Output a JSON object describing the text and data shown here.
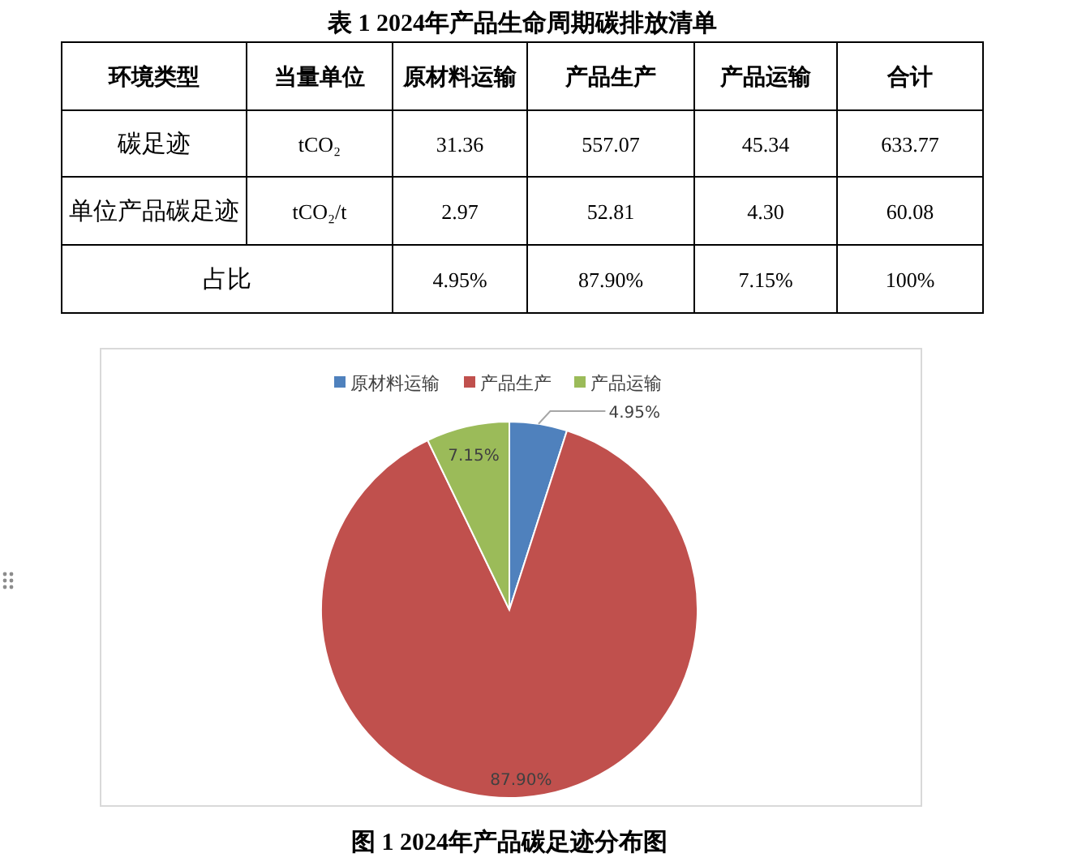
{
  "chart_data": [
    {
      "type": "other",
      "title": "表 1 2024年产品生命周期碳排放清单",
      "annotations": [
        "环境类型",
        "当量单位",
        "原材料运输",
        "产品生产",
        "产品运输",
        "合计",
        "碳足迹",
        "tCO₂",
        "31.36",
        "557.07",
        "45.34",
        "633.77",
        "单位产品碳足迹",
        "tCO₂/t",
        "2.97",
        "52.81",
        "4.30",
        "60.08",
        "占比",
        "4.95%",
        "87.90%",
        "7.15%",
        "100%"
      ]
    },
    {
      "type": "pie",
      "title": "图 1 2024年产品碳足迹分布图",
      "categories": [
        "原材料运输",
        "产品生产",
        "产品运输"
      ],
      "values": [
        4.95,
        87.9,
        7.15
      ],
      "colors": [
        "#4f81bd",
        "#c0504d",
        "#9bbb59"
      ],
      "value_labels": [
        "4.95%",
        "87.90%",
        "7.15%"
      ],
      "legend": "top"
    }
  ]
}
